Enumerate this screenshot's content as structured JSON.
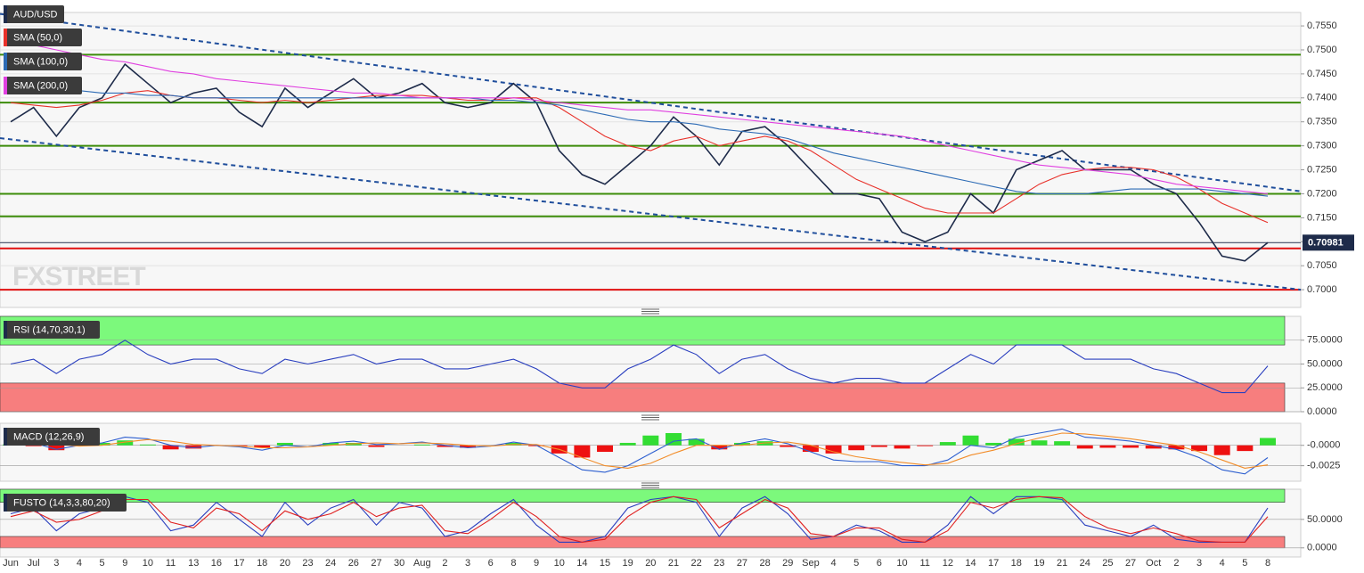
{
  "chart_data": [
    {
      "type": "line",
      "title": "AUD/USD",
      "watermark": "FXSTREET",
      "categories": [
        "Jun",
        "Jul",
        "3",
        "4",
        "5",
        "9",
        "10",
        "11",
        "13",
        "16",
        "17",
        "18",
        "20",
        "23",
        "24",
        "26",
        "27",
        "30",
        "Aug",
        "2",
        "3",
        "6",
        "8",
        "9",
        "10",
        "14",
        "15",
        "19",
        "20",
        "21",
        "22",
        "23",
        "27",
        "28",
        "29",
        "Sep",
        "4",
        "5",
        "6",
        "10",
        "11",
        "12",
        "14",
        "17",
        "18",
        "19",
        "21",
        "24",
        "25",
        "27",
        "Oct",
        "2",
        "3",
        "4",
        "5",
        "8"
      ],
      "ylim": [
        0.6963,
        0.7578
      ],
      "yticks": [
        {
          "value": 0.7,
          "label": "0.7000"
        },
        {
          "value": 0.705,
          "label": "0.7050"
        },
        {
          "value": 0.71,
          "label": "0.7100"
        },
        {
          "value": 0.715,
          "label": "0.7150"
        },
        {
          "value": 0.72,
          "label": "0.7200"
        },
        {
          "value": 0.725,
          "label": "0.7250"
        },
        {
          "value": 0.73,
          "label": "0.7300"
        },
        {
          "value": 0.735,
          "label": "0.7350"
        },
        {
          "value": 0.74,
          "label": "0.7400"
        },
        {
          "value": 0.745,
          "label": "0.7450"
        },
        {
          "value": 0.75,
          "label": "0.7500"
        },
        {
          "value": 0.755,
          "label": "0.7550"
        }
      ],
      "grid": true,
      "last": 0.70981,
      "series": [
        {
          "color": "#1e2b4a",
          "values": [
            0.735,
            0.738,
            0.732,
            0.738,
            0.74,
            0.747,
            0.743,
            0.739,
            0.741,
            0.742,
            0.737,
            0.734,
            0.742,
            0.738,
            0.741,
            0.744,
            0.74,
            0.741,
            0.743,
            0.739,
            0.738,
            0.739,
            0.743,
            0.739,
            0.729,
            0.724,
            0.722,
            0.726,
            0.73,
            0.736,
            0.732,
            0.726,
            0.733,
            0.734,
            0.73,
            0.725,
            0.72,
            0.72,
            0.719,
            0.712,
            0.71,
            0.712,
            0.72,
            0.716,
            0.725,
            0.727,
            0.729,
            0.725,
            0.725,
            0.725,
            0.722,
            0.72,
            0.714,
            0.707,
            0.706,
            0.70981
          ]
        },
        {
          "name": "SMA (50,0)",
          "color": "#e8312a",
          "values": [
            0.739,
            0.7385,
            0.738,
            0.7385,
            0.7395,
            0.741,
            0.7415,
            0.7405,
            0.74,
            0.74,
            0.7395,
            0.739,
            0.7395,
            0.739,
            0.7395,
            0.74,
            0.7405,
            0.7405,
            0.7405,
            0.74,
            0.7395,
            0.7395,
            0.74,
            0.74,
            0.738,
            0.735,
            0.732,
            0.73,
            0.729,
            0.731,
            0.732,
            0.73,
            0.731,
            0.732,
            0.731,
            0.729,
            0.726,
            0.723,
            0.721,
            0.719,
            0.717,
            0.716,
            0.716,
            0.716,
            0.719,
            0.722,
            0.724,
            0.725,
            0.7255,
            0.7255,
            0.725,
            0.7235,
            0.721,
            0.718,
            0.716,
            0.714
          ]
        },
        {
          "name": "SMA (100,0)",
          "color": "#2d6bb5",
          "values": [
            0.743,
            0.7425,
            0.742,
            0.7415,
            0.741,
            0.741,
            0.7405,
            0.7405,
            0.74,
            0.74,
            0.74,
            0.74,
            0.74,
            0.74,
            0.74,
            0.74,
            0.74,
            0.74,
            0.74,
            0.74,
            0.74,
            0.7395,
            0.7395,
            0.739,
            0.7385,
            0.7375,
            0.7365,
            0.7355,
            0.735,
            0.735,
            0.7345,
            0.7335,
            0.733,
            0.7325,
            0.7315,
            0.73,
            0.7285,
            0.7275,
            0.7265,
            0.7255,
            0.7245,
            0.7235,
            0.7225,
            0.7215,
            0.7205,
            0.72,
            0.72,
            0.72,
            0.7205,
            0.721,
            0.721,
            0.721,
            0.721,
            0.7205,
            0.72,
            0.7195
          ]
        },
        {
          "name": "SMA (200,0)",
          "color": "#e040e0",
          "values": [
            0.7515,
            0.751,
            0.75,
            0.749,
            0.748,
            0.7475,
            0.7465,
            0.7455,
            0.745,
            0.744,
            0.7435,
            0.743,
            0.7425,
            0.742,
            0.7415,
            0.741,
            0.741,
            0.7405,
            0.74,
            0.74,
            0.74,
            0.74,
            0.74,
            0.7395,
            0.739,
            0.7385,
            0.738,
            0.7375,
            0.7375,
            0.737,
            0.7365,
            0.736,
            0.7355,
            0.735,
            0.7345,
            0.734,
            0.7335,
            0.733,
            0.7325,
            0.732,
            0.731,
            0.73,
            0.729,
            0.728,
            0.727,
            0.726,
            0.7255,
            0.725,
            0.7245,
            0.724,
            0.723,
            0.722,
            0.7215,
            0.721,
            0.7205,
            0.72
          ]
        }
      ],
      "levels": [
        {
          "value": 0.749,
          "color": "#3c8c0a"
        },
        {
          "value": 0.739,
          "color": "#3c8c0a"
        },
        {
          "value": 0.73,
          "color": "#3c8c0a"
        },
        {
          "value": 0.72,
          "color": "#3c8c0a"
        },
        {
          "value": 0.7153,
          "color": "#3c8c0a"
        },
        {
          "value": 0.7086,
          "color": "#e01010"
        },
        {
          "value": 0.7,
          "color": "#e01010"
        }
      ],
      "trendlines": [
        {
          "values": [
            0.7575,
            0.7205
          ],
          "color": "#1f4e9c"
        },
        {
          "values": [
            0.7316,
            0.7
          ],
          "color": "#1f4e9c"
        }
      ]
    },
    {
      "type": "line",
      "title": "RSI (14,70,30,1)",
      "ylim": [
        0,
        100
      ],
      "yticks": [
        {
          "value": 75,
          "label": "75.0000"
        },
        {
          "value": 50,
          "label": "50.0000"
        },
        {
          "value": 25,
          "label": "25.0000"
        },
        {
          "value": 0,
          "label": "0.0000"
        }
      ],
      "overbought": 70,
      "oversold": 30,
      "series": [
        {
          "color": "#2a3fbf",
          "values": [
            50,
            55,
            40,
            55,
            60,
            75,
            60,
            50,
            55,
            55,
            45,
            40,
            55,
            50,
            55,
            60,
            50,
            55,
            55,
            45,
            45,
            50,
            55,
            45,
            30,
            25,
            25,
            45,
            55,
            70,
            60,
            40,
            55,
            60,
            45,
            35,
            30,
            35,
            35,
            30,
            30,
            45,
            60,
            50,
            70,
            70,
            70,
            55,
            55,
            55,
            45,
            40,
            30,
            20,
            20,
            48
          ]
        }
      ]
    },
    {
      "type": "macd",
      "title": "MACD (12,26,9)",
      "ylim": [
        -0.0044,
        0.0027
      ],
      "yticks": [
        {
          "value": 0,
          "label": "-0.0000"
        },
        {
          "value": -0.0025,
          "label": "-0.0025"
        }
      ],
      "series": [
        {
          "color": "#2d5fd0",
          "values": [
            0.0005,
            0.0003,
            -0.0005,
            0,
            0.0003,
            0.001,
            0.0008,
            0,
            -0.0003,
            0,
            -0.0002,
            -0.0006,
            0,
            -0.0002,
            0.0003,
            0.0005,
            0.0001,
            0.0002,
            0.0004,
            0,
            -0.0003,
            -0.0001,
            0.0004,
            0,
            -0.0015,
            -0.003,
            -0.0033,
            -0.0025,
            -0.001,
            0.0005,
            0.0008,
            -0.0005,
            0.0003,
            0.0008,
            0.0002,
            -0.0008,
            -0.0018,
            -0.002,
            -0.002,
            -0.0025,
            -0.0025,
            -0.0018,
            0,
            -0.0003,
            0.001,
            0.0015,
            0.002,
            0.001,
            0.0008,
            0.0005,
            0,
            -0.0005,
            -0.0015,
            -0.003,
            -0.0035,
            -0.0015
          ]
        },
        {
          "color": "#f28c28",
          "values": [
            0.0004,
            0.0004,
            0.0001,
            -0.0001,
            0,
            0.0004,
            0.0007,
            0.0005,
            0.0001,
            0,
            -0.0001,
            -0.0003,
            -0.0003,
            -0.0002,
            0,
            0.0002,
            0.0003,
            0.0002,
            0.0003,
            0.0002,
            0,
            -0.0001,
            0.0001,
            0.0001,
            -0.0005,
            -0.0015,
            -0.0025,
            -0.0028,
            -0.0022,
            -0.001,
            0,
            0,
            0,
            0.0003,
            0.0004,
            0,
            -0.0008,
            -0.0014,
            -0.0018,
            -0.0021,
            -0.0024,
            -0.0022,
            -0.0012,
            -0.0006,
            0.0002,
            0.0009,
            0.0015,
            0.0014,
            0.0011,
            0.0008,
            0.0004,
            0,
            -0.0008,
            -0.0018,
            -0.0028,
            -0.0024
          ]
        }
      ],
      "histogram": {
        "up_color": "#33dd33",
        "down_color": "#ee1111",
        "values": [
          0.0001,
          -0.0001,
          -0.0006,
          0.0001,
          0.0003,
          0.0006,
          0.0001,
          -0.0005,
          -0.0004,
          0,
          -0.0001,
          -0.0003,
          0.0003,
          0,
          0.0003,
          0.0003,
          -0.0002,
          0,
          0.0001,
          -0.0002,
          -0.0003,
          0,
          0.0003,
          -0.0001,
          -0.001,
          -0.0015,
          -0.0008,
          0.0003,
          0.0012,
          0.0015,
          0.0008,
          -0.0005,
          0.0003,
          0.0005,
          -0.0002,
          -0.0008,
          -0.001,
          -0.0006,
          -0.0002,
          -0.0004,
          -0.0001,
          0.0004,
          0.0012,
          0.0003,
          0.0008,
          0.0006,
          0.0005,
          -0.0004,
          -0.0003,
          -0.0003,
          -0.0004,
          -0.0005,
          -0.0007,
          -0.0012,
          -0.0007,
          0.0009
        ]
      }
    },
    {
      "type": "line",
      "title": "FUSTO (14,3,3,80,20)",
      "ylim": [
        -16,
        103
      ],
      "yticks": [
        {
          "value": 50,
          "label": "50.0000"
        },
        {
          "value": 0,
          "label": "0.0000"
        }
      ],
      "overbought": 80,
      "oversold": 20,
      "series": [
        {
          "color": "#2a3fbf",
          "values": [
            60,
            70,
            30,
            60,
            70,
            90,
            80,
            30,
            40,
            80,
            50,
            20,
            80,
            40,
            70,
            85,
            40,
            80,
            70,
            20,
            30,
            60,
            85,
            40,
            10,
            10,
            20,
            70,
            85,
            90,
            80,
            20,
            70,
            90,
            60,
            15,
            20,
            40,
            30,
            10,
            10,
            40,
            90,
            60,
            90,
            90,
            85,
            40,
            30,
            20,
            40,
            15,
            10,
            10,
            10,
            70
          ]
        },
        {
          "color": "#e02020",
          "values": [
            55,
            65,
            45,
            50,
            65,
            85,
            85,
            45,
            35,
            70,
            60,
            30,
            65,
            50,
            60,
            80,
            55,
            70,
            75,
            30,
            25,
            50,
            80,
            55,
            20,
            10,
            15,
            55,
            80,
            90,
            85,
            35,
            60,
            85,
            70,
            25,
            20,
            35,
            35,
            15,
            10,
            30,
            80,
            70,
            85,
            90,
            88,
            55,
            35,
            25,
            35,
            25,
            12,
            10,
            10,
            55
          ]
        }
      ]
    }
  ]
}
